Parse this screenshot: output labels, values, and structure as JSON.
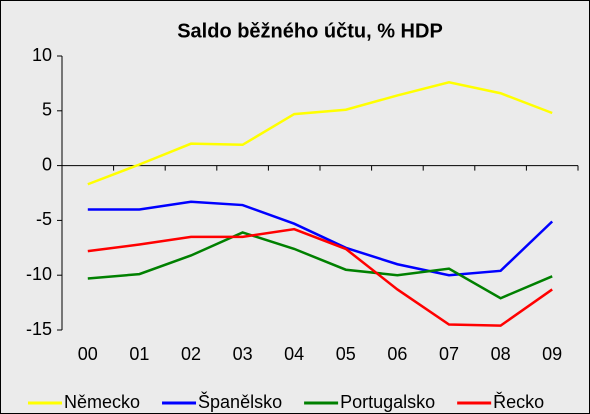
{
  "chart_data": {
    "type": "line",
    "title": "Saldo běžného účtu, % HDP",
    "categories": [
      "00",
      "01",
      "02",
      "03",
      "04",
      "05",
      "06",
      "07",
      "08",
      "09"
    ],
    "series": [
      {
        "name": "Německo",
        "color": "#ffff00",
        "values": [
          -1.7,
          0.1,
          2.0,
          1.9,
          4.7,
          5.1,
          6.4,
          7.6,
          6.6,
          4.8
        ]
      },
      {
        "name": "Španělsko",
        "color": "#0000ff",
        "values": [
          -4.0,
          -4.0,
          -3.3,
          -3.6,
          -5.3,
          -7.5,
          -9.0,
          -10.0,
          -9.6,
          -5.1
        ]
      },
      {
        "name": "Portugalsko",
        "color": "#008000",
        "values": [
          -10.3,
          -9.9,
          -8.2,
          -6.1,
          -7.6,
          -9.5,
          -10.0,
          -9.4,
          -12.1,
          -10.1
        ]
      },
      {
        "name": "Řecko",
        "color": "#ff0000",
        "values": [
          -7.8,
          -7.2,
          -6.5,
          -6.5,
          -5.8,
          -7.6,
          -11.3,
          -14.5,
          -14.6,
          -11.3
        ]
      }
    ],
    "ylim": [
      -15,
      10
    ],
    "yticks": [
      -15,
      -10,
      -5,
      0,
      5,
      10
    ],
    "legend": "bottom"
  }
}
